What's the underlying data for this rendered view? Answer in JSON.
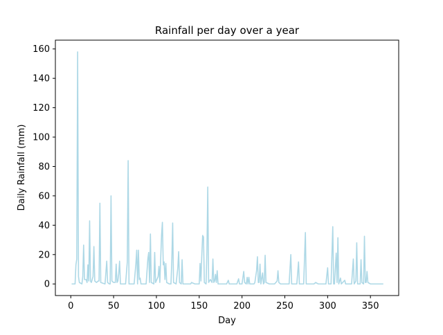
{
  "chart_data": {
    "type": "line",
    "title": "Rainfall per day over a year",
    "xlabel": "Day",
    "ylabel": "Daily Rainfall (mm)",
    "xlim": [
      -18,
      383
    ],
    "ylim": [
      -7.9,
      166
    ],
    "xticks": [
      0,
      50,
      100,
      150,
      200,
      250,
      300,
      350
    ],
    "yticks": [
      0,
      20,
      40,
      60,
      80,
      100,
      120,
      140,
      160
    ],
    "grid": false,
    "legend": "none",
    "series": [
      {
        "color": "#add8e6",
        "points": [
          [
            1,
            0
          ],
          [
            5,
            0
          ],
          [
            6,
            13
          ],
          [
            7,
            17
          ],
          [
            8,
            158
          ],
          [
            9,
            5
          ],
          [
            10,
            1
          ],
          [
            13,
            0
          ],
          [
            14,
            5
          ],
          [
            15,
            26.5
          ],
          [
            16,
            3
          ],
          [
            18,
            3
          ],
          [
            19,
            1
          ],
          [
            20,
            13
          ],
          [
            21,
            2
          ],
          [
            22,
            43
          ],
          [
            23,
            2
          ],
          [
            24,
            1
          ],
          [
            26,
            5
          ],
          [
            27,
            25.5
          ],
          [
            28,
            2
          ],
          [
            30,
            1
          ],
          [
            32,
            2
          ],
          [
            33,
            2
          ],
          [
            34,
            55
          ],
          [
            35,
            1
          ],
          [
            40,
            0
          ],
          [
            42,
            15.5
          ],
          [
            43,
            1
          ],
          [
            45,
            0
          ],
          [
            46,
            0
          ],
          [
            47,
            60
          ],
          [
            48,
            2
          ],
          [
            50,
            1
          ],
          [
            52,
            1
          ],
          [
            53,
            13.5
          ],
          [
            54,
            1
          ],
          [
            55,
            2
          ],
          [
            56,
            7
          ],
          [
            57,
            15.5
          ],
          [
            58,
            0
          ],
          [
            64,
            0
          ],
          [
            66,
            15
          ],
          [
            67,
            84
          ],
          [
            68,
            0
          ],
          [
            74,
            0
          ],
          [
            76,
            13.5
          ],
          [
            77,
            23
          ],
          [
            78,
            0
          ],
          [
            79,
            23
          ],
          [
            80,
            3
          ],
          [
            81,
            4
          ],
          [
            82,
            0
          ],
          [
            88,
            0
          ],
          [
            90,
            17
          ],
          [
            91,
            21.5
          ],
          [
            92,
            1
          ],
          [
            93,
            34
          ],
          [
            94,
            1
          ],
          [
            97,
            0
          ],
          [
            98,
            21.5
          ],
          [
            99,
            1
          ],
          [
            102,
            5
          ],
          [
            103,
            12
          ],
          [
            104,
            1
          ],
          [
            106,
            33
          ],
          [
            107,
            42
          ],
          [
            108,
            13
          ],
          [
            109,
            15
          ],
          [
            110,
            3
          ],
          [
            111,
            14
          ],
          [
            112,
            1
          ],
          [
            115,
            0
          ],
          [
            117,
            0
          ],
          [
            118,
            16
          ],
          [
            119,
            41.5
          ],
          [
            120,
            1
          ],
          [
            123,
            0
          ],
          [
            125,
            11
          ],
          [
            126,
            22
          ],
          [
            127,
            1
          ],
          [
            129,
            0
          ],
          [
            130,
            16.5
          ],
          [
            131,
            0
          ],
          [
            140,
            0
          ],
          [
            141,
            1
          ],
          [
            145,
            0
          ],
          [
            150,
            0
          ],
          [
            151,
            14
          ],
          [
            152,
            2
          ],
          [
            153,
            19
          ],
          [
            154,
            33
          ],
          [
            155,
            32
          ],
          [
            156,
            1
          ],
          [
            158,
            0
          ],
          [
            159,
            22
          ],
          [
            160,
            66
          ],
          [
            161,
            1
          ],
          [
            163,
            3
          ],
          [
            165,
            1
          ],
          [
            166,
            17
          ],
          [
            167,
            1
          ],
          [
            168,
            2
          ],
          [
            169,
            6.5
          ],
          [
            170,
            1
          ],
          [
            171,
            9
          ],
          [
            172,
            0
          ],
          [
            182,
            0
          ],
          [
            184,
            2.5
          ],
          [
            185,
            0
          ],
          [
            194,
            0
          ],
          [
            196,
            3.5
          ],
          [
            197,
            0
          ],
          [
            200,
            0
          ],
          [
            202,
            8.5
          ],
          [
            203,
            1
          ],
          [
            205,
            0
          ],
          [
            206,
            4.5
          ],
          [
            207,
            0
          ],
          [
            208,
            4.5
          ],
          [
            209,
            0
          ],
          [
            214,
            0
          ],
          [
            215,
            1
          ],
          [
            217,
            9
          ],
          [
            218,
            18.5
          ],
          [
            219,
            1
          ],
          [
            220,
            1
          ],
          [
            221,
            13.5
          ],
          [
            222,
            0
          ],
          [
            224,
            7.5
          ],
          [
            225,
            0
          ],
          [
            226,
            1
          ],
          [
            227,
            19.5
          ],
          [
            228,
            1
          ],
          [
            232,
            0
          ],
          [
            238,
            0
          ],
          [
            241,
            2
          ],
          [
            242,
            9
          ],
          [
            243,
            1
          ],
          [
            245,
            0
          ],
          [
            255,
            0
          ],
          [
            257,
            20
          ],
          [
            258,
            0
          ],
          [
            264,
            0
          ],
          [
            266,
            15
          ],
          [
            267,
            0
          ],
          [
            272,
            0
          ],
          [
            274,
            35
          ],
          [
            275,
            0
          ],
          [
            284,
            0
          ],
          [
            286,
            1
          ],
          [
            289,
            0
          ],
          [
            298,
            0
          ],
          [
            300,
            11
          ],
          [
            301,
            0
          ],
          [
            304,
            0
          ],
          [
            306,
            39
          ],
          [
            307,
            0
          ],
          [
            308,
            0
          ],
          [
            310,
            21
          ],
          [
            311,
            1
          ],
          [
            312,
            31.5
          ],
          [
            313,
            0
          ],
          [
            315,
            4
          ],
          [
            316,
            0
          ],
          [
            320,
            2.5
          ],
          [
            321,
            0
          ],
          [
            328,
            0
          ],
          [
            330,
            17
          ],
          [
            331,
            0
          ],
          [
            333,
            2
          ],
          [
            334,
            28
          ],
          [
            335,
            0
          ],
          [
            338,
            0
          ],
          [
            339,
            16.5
          ],
          [
            340,
            1
          ],
          [
            342,
            0
          ],
          [
            343,
            32.5
          ],
          [
            344,
            1
          ],
          [
            345,
            1
          ],
          [
            346,
            8.5
          ],
          [
            347,
            1
          ],
          [
            350,
            0
          ],
          [
            365,
            0
          ]
        ]
      }
    ]
  }
}
